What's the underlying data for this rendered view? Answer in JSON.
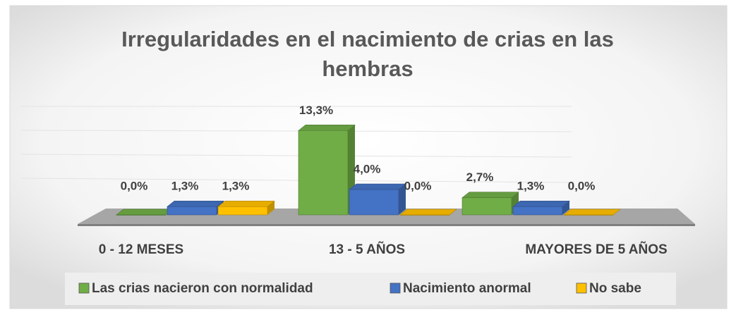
{
  "chart_data": {
    "type": "bar3d",
    "title": "Irregularidades en el nacimiento de crias en las hembras",
    "categories": [
      "0 - 12 MESES",
      "13 - 5 AÑOS",
      "MAYORES DE 5 AÑOS"
    ],
    "series": [
      {
        "name": "Las crias nacieron con normalidad",
        "color": "#70ad47",
        "values": [
          0.0,
          13.3,
          2.7
        ],
        "value_labels": [
          "0,0%",
          "13,3%",
          "2,7%"
        ]
      },
      {
        "name": "Nacimiento anormal",
        "color": "#4472c4",
        "values": [
          1.3,
          4.0,
          1.3
        ],
        "value_labels": [
          "1,3%",
          "4,0%",
          "1,3%"
        ]
      },
      {
        "name": "No sabe",
        "color": "#ffc000",
        "values": [
          1.3,
          0.0,
          0.0
        ],
        "value_labels": [
          "1,3%",
          "0,0%",
          "0,0%"
        ]
      }
    ],
    "ylim": [
      0,
      16
    ],
    "yticks": [
      0,
      4,
      8,
      12,
      16
    ],
    "grid": true,
    "legend": "bottom"
  }
}
